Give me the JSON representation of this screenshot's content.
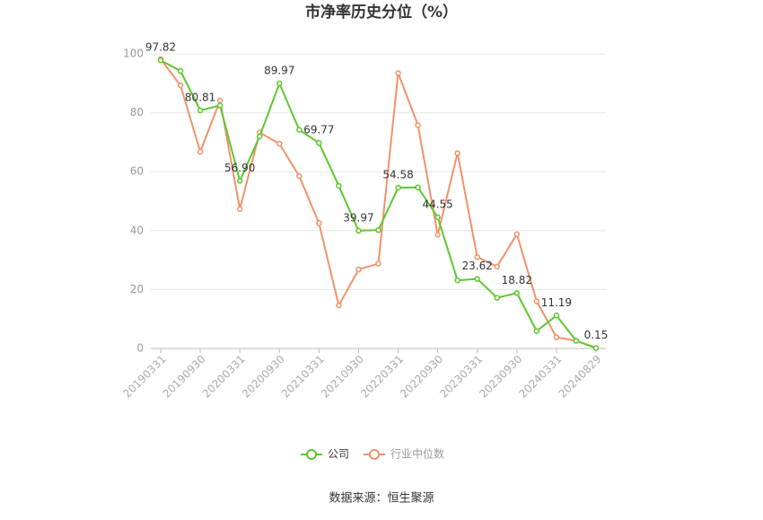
{
  "chart_data": {
    "type": "line",
    "title": "市净率历史分位（%）",
    "source": "数据来源：恒生聚源",
    "categories": [
      "20190331",
      null,
      "20190930",
      null,
      "20200331",
      null,
      "20200930",
      null,
      "20210331",
      null,
      "20210930",
      null,
      "20220331",
      null,
      "20220930",
      null,
      "20230331",
      null,
      "20230930",
      null,
      "20240331",
      null,
      "20240829"
    ],
    "series": [
      {
        "name": "公司",
        "color": "#5cc82f",
        "values": [
          97.82,
          94.2,
          80.81,
          82.5,
          56.9,
          72.0,
          89.97,
          74.2,
          69.77,
          55.2,
          39.97,
          40.2,
          54.58,
          54.7,
          44.55,
          23.1,
          23.62,
          17.2,
          18.82,
          5.9,
          11.19,
          2.6,
          0.15
        ],
        "value_labels": [
          "97.82",
          null,
          "80.81",
          null,
          "56.90",
          null,
          "89.97",
          null,
          "69.77",
          null,
          "39.97",
          null,
          "54.58",
          null,
          "44.55",
          null,
          "23.62",
          null,
          "18.82",
          null,
          "11.19",
          null,
          "0.15"
        ]
      },
      {
        "name": "行业中位数",
        "color": "#f2926a",
        "values": [
          98.2,
          89.3,
          66.8,
          84.2,
          47.3,
          73.3,
          69.5,
          58.5,
          42.5,
          14.6,
          26.8,
          28.8,
          93.5,
          75.8,
          38.6,
          66.3,
          31.0,
          27.8,
          38.8,
          16.0,
          3.8,
          2.6,
          0.2
        ]
      }
    ],
    "ylim": [
      0,
      100
    ],
    "yticks": [
      0,
      20,
      40,
      60,
      80,
      100
    ],
    "grid": true
  }
}
